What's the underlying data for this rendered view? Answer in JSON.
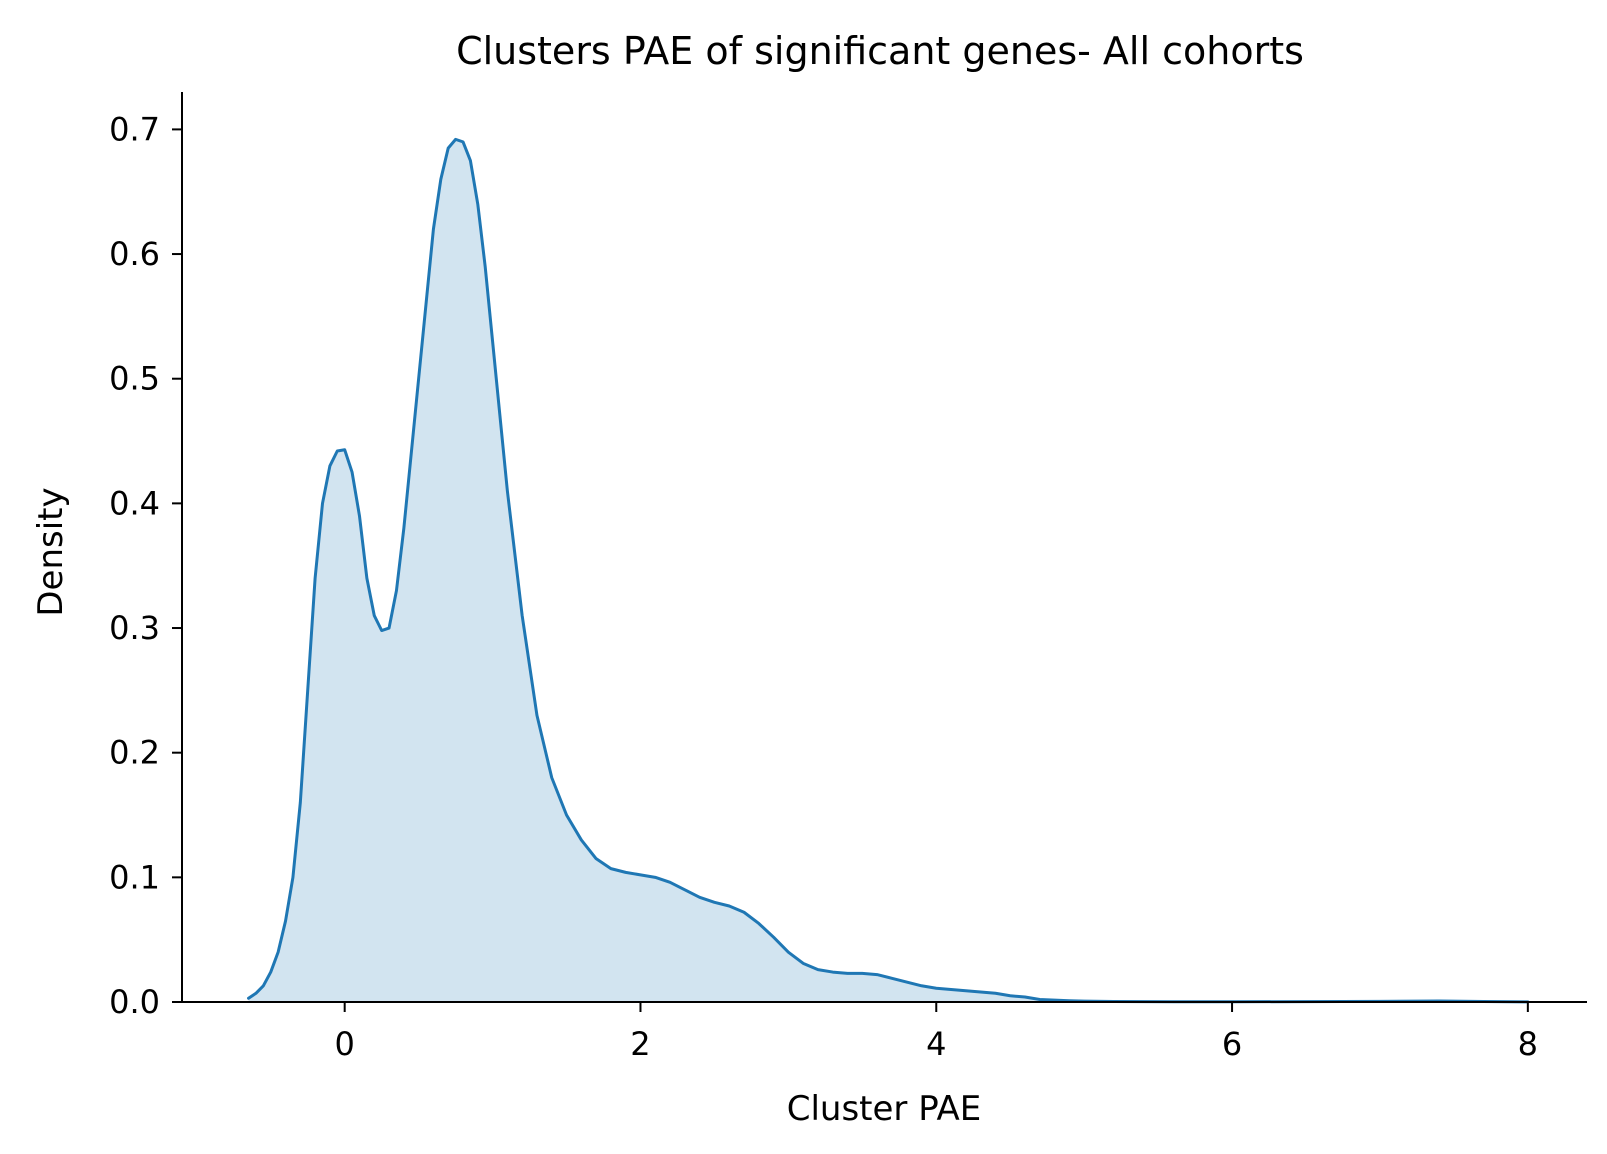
{
  "chart_data": {
    "type": "area",
    "title": "Clusters PAE of significant genes- All cohorts",
    "xlabel": "Cluster PAE",
    "ylabel": "Density",
    "xlim": [
      -1.1,
      8.4
    ],
    "ylim": [
      0,
      0.73
    ],
    "xticks": [
      0,
      2,
      4,
      6,
      8
    ],
    "xtick_labels": [
      "0",
      "2",
      "4",
      "6",
      "8"
    ],
    "yticks": [
      0.0,
      0.1,
      0.2,
      0.3,
      0.4,
      0.5,
      0.6,
      0.7
    ],
    "ytick_labels": [
      "0.0",
      "0.1",
      "0.2",
      "0.3",
      "0.4",
      "0.5",
      "0.6",
      "0.7"
    ],
    "grid": false,
    "legend": "none",
    "colors": {
      "line": "#1f77b4",
      "fill": "#1f77b4",
      "fill_opacity": 0.2,
      "axis": "#000000"
    },
    "series": [
      {
        "x": [
          -0.65,
          -0.6,
          -0.55,
          -0.5,
          -0.45,
          -0.4,
          -0.35,
          -0.3,
          -0.25,
          -0.2,
          -0.15,
          -0.1,
          -0.05,
          0.0,
          0.05,
          0.1,
          0.15,
          0.2,
          0.25,
          0.3,
          0.35,
          0.4,
          0.45,
          0.5,
          0.55,
          0.6,
          0.65,
          0.7,
          0.75,
          0.8,
          0.85,
          0.9,
          0.95,
          1.0,
          1.05,
          1.1,
          1.2,
          1.3,
          1.4,
          1.5,
          1.6,
          1.7,
          1.8,
          1.9,
          2.0,
          2.1,
          2.2,
          2.3,
          2.4,
          2.5,
          2.6,
          2.7,
          2.8,
          2.9,
          3.0,
          3.1,
          3.2,
          3.3,
          3.4,
          3.5,
          3.6,
          3.7,
          3.8,
          3.9,
          4.0,
          4.1,
          4.2,
          4.3,
          4.4,
          4.5,
          4.6,
          4.7,
          4.8,
          4.9,
          5.0,
          5.2,
          5.4,
          5.6,
          5.8,
          6.0,
          6.5,
          7.0,
          7.4,
          7.7,
          8.0
        ],
        "y": [
          0.003,
          0.007,
          0.013,
          0.024,
          0.04,
          0.065,
          0.1,
          0.16,
          0.25,
          0.34,
          0.4,
          0.43,
          0.442,
          0.443,
          0.425,
          0.39,
          0.34,
          0.31,
          0.298,
          0.3,
          0.33,
          0.38,
          0.44,
          0.5,
          0.56,
          0.62,
          0.66,
          0.685,
          0.692,
          0.69,
          0.675,
          0.64,
          0.59,
          0.53,
          0.47,
          0.41,
          0.31,
          0.23,
          0.18,
          0.15,
          0.13,
          0.115,
          0.107,
          0.104,
          0.102,
          0.1,
          0.096,
          0.09,
          0.084,
          0.08,
          0.077,
          0.072,
          0.063,
          0.052,
          0.04,
          0.031,
          0.026,
          0.024,
          0.023,
          0.023,
          0.022,
          0.019,
          0.016,
          0.013,
          0.011,
          0.01,
          0.009,
          0.008,
          0.007,
          0.005,
          0.004,
          0.002,
          0.0015,
          0.001,
          0.0007,
          0.0004,
          0.0003,
          0.0002,
          0.0002,
          0.0002,
          0.0003,
          0.0005,
          0.0008,
          0.0004,
          0.0001
        ]
      }
    ]
  }
}
